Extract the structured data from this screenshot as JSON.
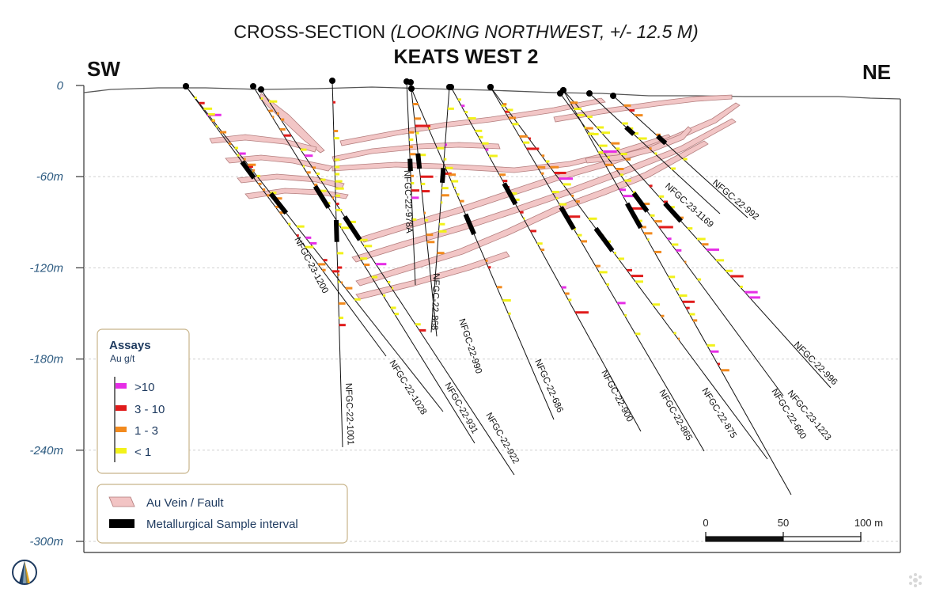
{
  "title": {
    "line1_prefix": "CROSS-SECTION ",
    "line1_italic": "(LOOKING NORTHWEST, +/- 12.5 M)",
    "line2": "KEATS WEST 2"
  },
  "directions": {
    "left": "SW",
    "right": "NE"
  },
  "depth_axis": {
    "ticks": [
      {
        "value": 0,
        "label": "0"
      },
      {
        "value": -60,
        "label": "-60m"
      },
      {
        "value": -120,
        "label": "-120m"
      },
      {
        "value": -180,
        "label": "-180m"
      },
      {
        "value": -240,
        "label": "-240m"
      },
      {
        "value": -300,
        "label": "-300m"
      }
    ]
  },
  "drillholes": [
    {
      "id": "NFGC-23-1200"
    },
    {
      "id": "NFGC-22-1028"
    },
    {
      "id": "NFGC-22-1001"
    },
    {
      "id": "NFGC-22-931"
    },
    {
      "id": "NFGC-22-922"
    },
    {
      "id": "NFGC-22-978A"
    },
    {
      "id": "NFGC-22-868"
    },
    {
      "id": "NFGC-22-990"
    },
    {
      "id": "NFGC-22-686"
    },
    {
      "id": "NFGC-22-900"
    },
    {
      "id": "NFGC-22-865"
    },
    {
      "id": "NFGC-22-875"
    },
    {
      "id": "NFGC-22-660"
    },
    {
      "id": "NFGC-23-1223"
    },
    {
      "id": "NFGC-22-996"
    },
    {
      "id": "NFGC-23-1169"
    },
    {
      "id": "NFGC-22-992"
    }
  ],
  "assay_legend": {
    "title": "Assays",
    "unit": "Au g/t",
    "items": [
      {
        "label": ">10",
        "color": "#e62ee6"
      },
      {
        "label": "3 - 10",
        "color": "#e01b1b"
      },
      {
        "label": "1 - 3",
        "color": "#f28a1e"
      },
      {
        "label": "< 1",
        "color": "#f2f21a"
      }
    ]
  },
  "feature_legend": {
    "items": [
      {
        "label": "Au Vein / Fault",
        "color": "#f2c4c4"
      },
      {
        "label": "Metallurgical Sample interval",
        "color": "#000000"
      }
    ]
  },
  "scale_bar": {
    "labels": [
      "0",
      "50",
      "100 m"
    ]
  },
  "colors": {
    "vein_fill": "#f2c4c4",
    "vein_stroke": "#b07878",
    "axis_text": "#2c5a80",
    "legend_border": "#c8b48a"
  },
  "icons": {
    "logo": "company-logo-icon",
    "watermark": "watermark-icon"
  }
}
